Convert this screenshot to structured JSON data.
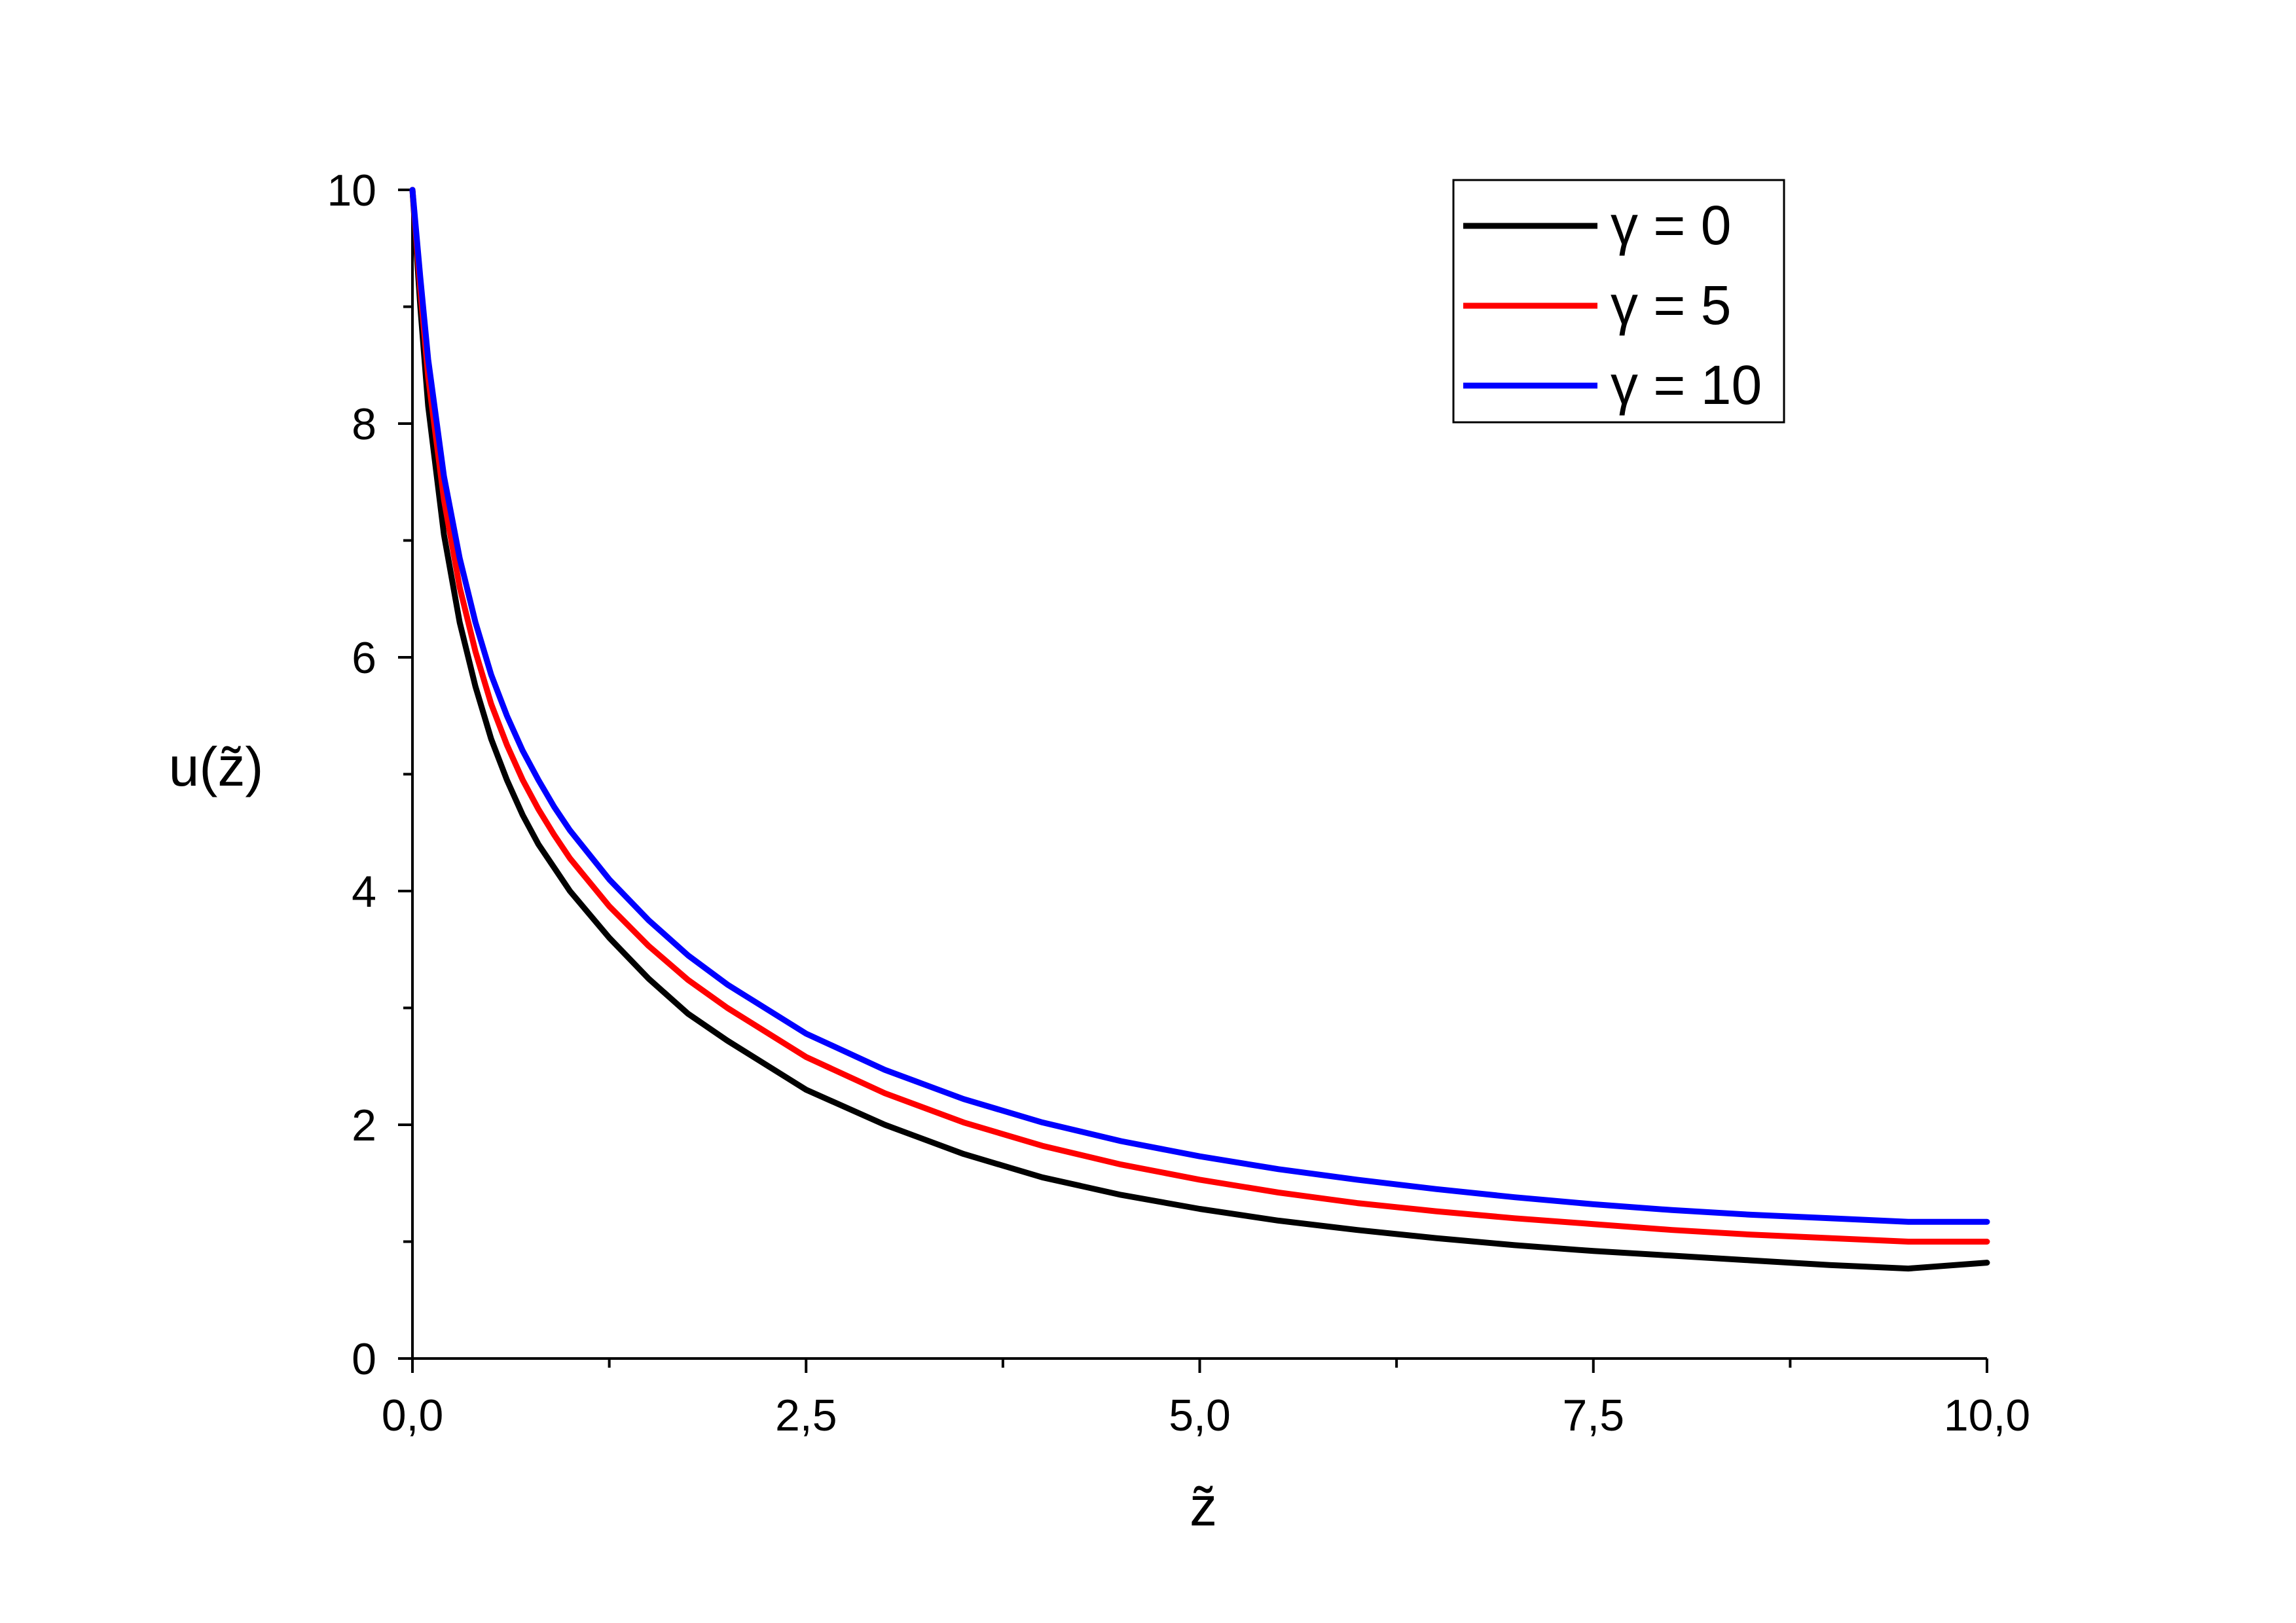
{
  "chart_data": {
    "type": "line",
    "title": "",
    "xlabel": "z̃",
    "ylabel": "u(z̃)",
    "xlim": [
      0,
      10
    ],
    "ylim": [
      0,
      10
    ],
    "x_ticks": [
      "0,0",
      "2,5",
      "5,0",
      "7,5",
      "10,0"
    ],
    "y_ticks": [
      "0",
      "2",
      "4",
      "6",
      "8",
      "10"
    ],
    "grid": false,
    "legend_position": "top-right",
    "x": [
      0,
      0.05,
      0.1,
      0.2,
      0.3,
      0.4,
      0.5,
      0.6,
      0.7,
      0.8,
      0.9,
      1.0,
      1.25,
      1.5,
      1.75,
      2.0,
      2.5,
      3.0,
      3.5,
      4.0,
      4.5,
      5.0,
      5.5,
      6.0,
      6.5,
      7.0,
      7.5,
      8.0,
      8.5,
      9.0,
      9.5,
      10.0
    ],
    "series": [
      {
        "name": "γ = 0",
        "color": "#000000",
        "values": [
          10,
          9.0,
          8.15,
          7.05,
          6.3,
          5.75,
          5.3,
          4.95,
          4.65,
          4.4,
          4.2,
          4.0,
          3.6,
          3.25,
          2.95,
          2.72,
          2.3,
          2.0,
          1.75,
          1.55,
          1.4,
          1.28,
          1.18,
          1.1,
          1.03,
          0.97,
          0.92,
          0.88,
          0.84,
          0.8,
          0.77,
          0.82
        ]
      },
      {
        "name": "γ = 5",
        "color": "#ff0000",
        "values": [
          10,
          9.15,
          8.4,
          7.35,
          6.6,
          6.05,
          5.6,
          5.25,
          4.95,
          4.7,
          4.48,
          4.28,
          3.87,
          3.53,
          3.24,
          3.0,
          2.58,
          2.27,
          2.02,
          1.82,
          1.66,
          1.53,
          1.42,
          1.33,
          1.26,
          1.2,
          1.15,
          1.1,
          1.06,
          1.03,
          1.0,
          1.0
        ]
      },
      {
        "name": "γ = 10",
        "color": "#0000ff",
        "values": [
          10,
          9.25,
          8.55,
          7.55,
          6.85,
          6.3,
          5.85,
          5.5,
          5.2,
          4.95,
          4.72,
          4.52,
          4.1,
          3.75,
          3.45,
          3.2,
          2.78,
          2.47,
          2.22,
          2.02,
          1.86,
          1.73,
          1.62,
          1.53,
          1.45,
          1.38,
          1.32,
          1.27,
          1.23,
          1.2,
          1.17,
          1.17
        ]
      }
    ]
  }
}
